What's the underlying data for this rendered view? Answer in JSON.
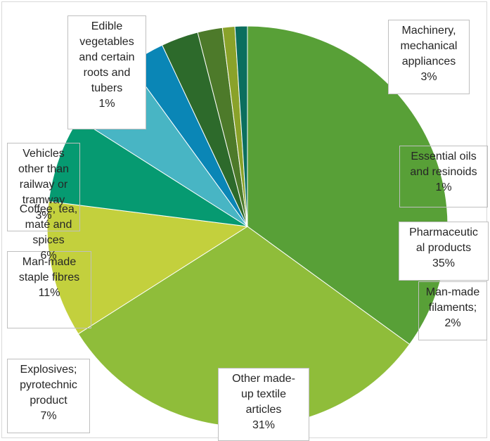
{
  "chart_data": {
    "type": "pie",
    "title": "",
    "start_angle_deg": 0,
    "direction": "clockwise",
    "slices": [
      {
        "label": "Pharmaceutical products",
        "label_lines": [
          "Pharmaceutic",
          "al products",
          "35%"
        ],
        "value": 35,
        "color": "#58a037"
      },
      {
        "label": "Other made-up textile articles",
        "label_lines": [
          "Other made-",
          "up textile",
          "articles",
          "31%"
        ],
        "value": 31,
        "color": "#8fbd3a"
      },
      {
        "label": "Man-made staple fibres",
        "label_lines": [
          "Man-made",
          "staple fibres",
          "11%"
        ],
        "value": 11,
        "color": "#c3d03d"
      },
      {
        "label": "Explosives; pyrotechnic product",
        "label_lines": [
          "Explosives;",
          "pyrotechnic",
          "product",
          "7%"
        ],
        "value": 7,
        "color": "#069a71"
      },
      {
        "label": "Coffee, tea, maté and spices",
        "label_lines": [
          "Coffee, tea,",
          "maté and",
          "spices",
          "6%"
        ],
        "value": 6,
        "color": "#48b5c4"
      },
      {
        "label": "Vehicles other than railway or tramway",
        "label_lines": [
          "Vehicles",
          "other than",
          "railway or",
          "tramway",
          "3%"
        ],
        "value": 3,
        "color": "#0a86b6"
      },
      {
        "label": "Machinery, mechanical appliances",
        "label_lines": [
          "Machinery,",
          "mechanical",
          "appliances",
          "3%"
        ],
        "value": 3,
        "color": "#2d6a2b"
      },
      {
        "label": "Man-made filaments",
        "label_lines": [
          "Man-made",
          "filaments;",
          "2%"
        ],
        "value": 2,
        "color": "#4d7a2a"
      },
      {
        "label": "Essential oils and resinoids",
        "label_lines": [
          "Essential oils",
          "and resinoids",
          "1%"
        ],
        "value": 1,
        "color": "#8aa22a"
      },
      {
        "label": "Edible vegetables and certain roots and tubers",
        "label_lines": [
          "Edible",
          "vegetables",
          "and certain",
          "roots and",
          "tubers",
          "1%"
        ],
        "value": 1,
        "color": "#0b6e5e"
      }
    ]
  }
}
